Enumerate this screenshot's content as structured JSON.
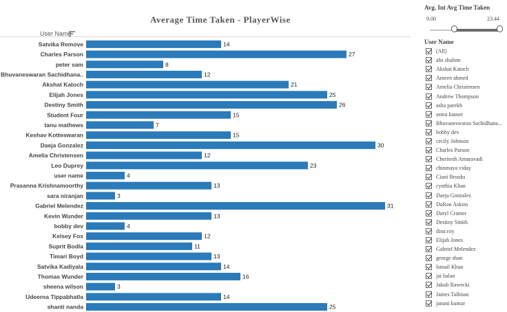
{
  "chart_data": {
    "type": "bar",
    "orientation": "horizontal",
    "title": "Average Time Taken - PlayerWise",
    "field_header": "User Name",
    "categories": [
      "Satvika Remove",
      "Charles Parson",
      "peter sam",
      "Bhuvaneswaran Sachidhana..",
      "Akshat Katoch",
      "Elijah Jones",
      "Destiny Smith",
      "Student Four",
      "tanu mathews",
      "Keshav Kotteswaran",
      "Daeja Gonzalez",
      "Amelia Christensen",
      "Leo Duprey",
      "user name",
      "Prasanna Krishnamoorthy",
      "sara niranjan",
      "Gabriel Melendez",
      "Kevin Wunder",
      "bobby dev",
      "Kelsey Fox",
      "Suprit Bodla",
      "Timari Boyd",
      "Satvika Kadiyala",
      "Thomas Wunder",
      "sheena wilson",
      "Udeerna Tippabhatla",
      "shanti nanda"
    ],
    "values": [
      14,
      27,
      8,
      12,
      21,
      25,
      26,
      15,
      7,
      15,
      30,
      12,
      23,
      4,
      13,
      3,
      31,
      13,
      4,
      12,
      11,
      13,
      14,
      16,
      3,
      14,
      25
    ],
    "bar_color": "#2b7bba",
    "legend": "none"
  },
  "filter": {
    "title": "Avg. Int Avg Time Taken",
    "min": "9.00",
    "max": "23.44",
    "selected_min_fraction": 0.25,
    "selected_max_fraction": 1.0
  },
  "user_filter": {
    "title": "User Name",
    "items": [
      "(All)",
      "abs shalom",
      "Akshat Katoch",
      "Ameen ahmed",
      "Amelia Christensen",
      "Andrew Thompson",
      "asha parekh",
      "asma kauser",
      "Bhuvaneswaran Sachidhana...",
      "bobby dev",
      "cecily Johnson",
      "Charles Parson",
      "Cheritesh Amaravadi",
      "chinmaya viday",
      "Ciani Brooks",
      "cynthia Khan",
      "Daeja Gonzalez",
      "DaRon Askins",
      "Daryl Cramer",
      "Destiny Smith",
      "dina roy",
      "Elijah Jones",
      "Gabriel Melendez",
      "george shan",
      "Ismail Khan",
      "jai balan",
      "Jakub Rawecki",
      "James Tallman",
      "janani kumar"
    ]
  }
}
